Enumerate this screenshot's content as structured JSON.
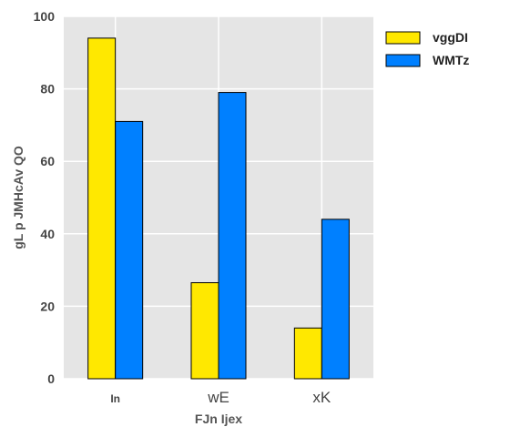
{
  "chart_data": {
    "type": "bar",
    "categories": [
      "In",
      "wE",
      "xK"
    ],
    "series": [
      {
        "name": "vggDI",
        "values": [
          94,
          26.5,
          14
        ],
        "color": "#ffe800"
      },
      {
        "name": "WMTz",
        "values": [
          71,
          79,
          44
        ],
        "color": "#0080ff"
      }
    ],
    "xlabel": "FJn Ijex",
    "ylabel": "gL p JMHcAv QO",
    "ylim": [
      0,
      100
    ],
    "yticks": [
      0,
      20,
      40,
      60,
      80,
      100
    ],
    "grid": true,
    "legend": "top-right",
    "background_color": "#e5e5e5",
    "grid_color": "#ffffff"
  }
}
